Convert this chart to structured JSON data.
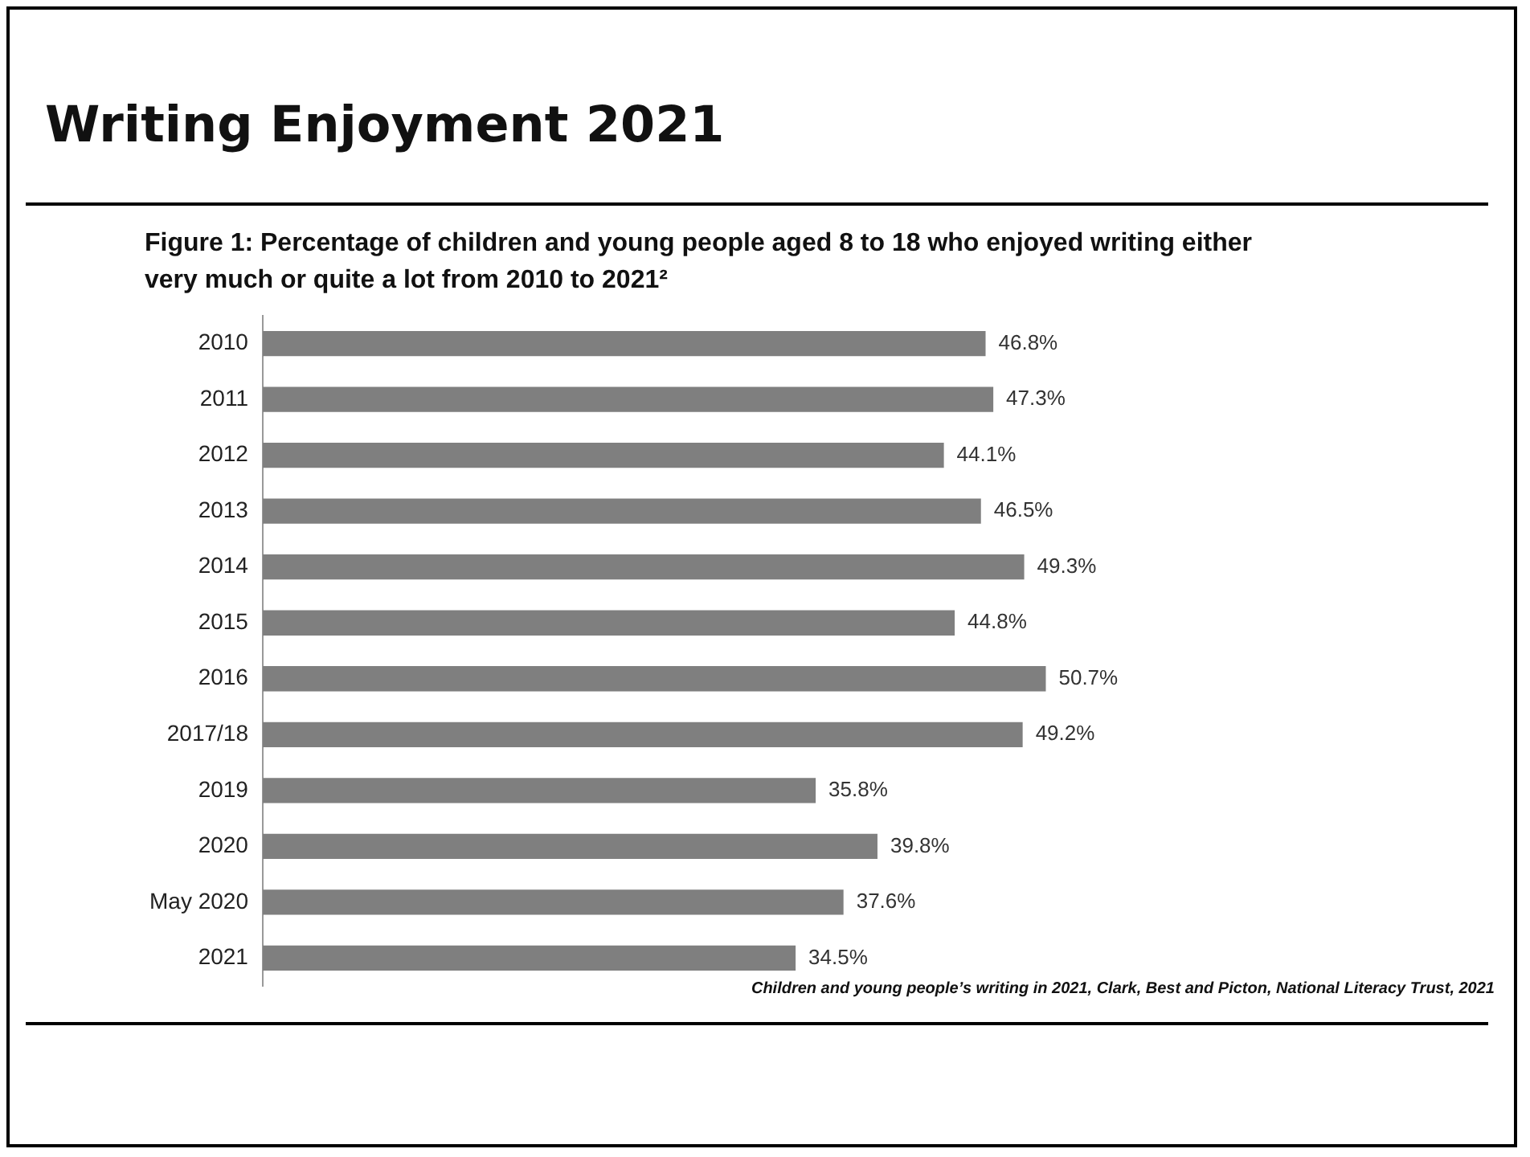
{
  "chart_data": {
    "type": "bar",
    "orientation": "horizontal",
    "title": "Writing Enjoyment 2021",
    "subtitle": "Figure 1: Percentage of children and young people aged 8 to 18 who enjoyed writing either very much or quite a lot from 2010 to 2021²",
    "categories": [
      "2010",
      "2011",
      "2012",
      "2013",
      "2014",
      "2015",
      "2016",
      "2017/18",
      "2019",
      "2020",
      "May 2020",
      "2021"
    ],
    "values": [
      46.8,
      47.3,
      44.1,
      46.5,
      49.3,
      44.8,
      50.7,
      49.2,
      35.8,
      39.8,
      37.6,
      34.5
    ],
    "value_labels": [
      "46.8%",
      "47.3%",
      "44.1%",
      "46.5%",
      "49.3%",
      "44.8%",
      "50.7%",
      "49.2%",
      "35.8%",
      "39.8%",
      "37.6%",
      "34.5%"
    ],
    "color": "#7f7f7f",
    "legend": false,
    "tick_labels": "y",
    "annotations": [
      "Children and young people’s writing in 2021, Clark, Best and Picton, National Literacy Trust, 2021"
    ]
  }
}
